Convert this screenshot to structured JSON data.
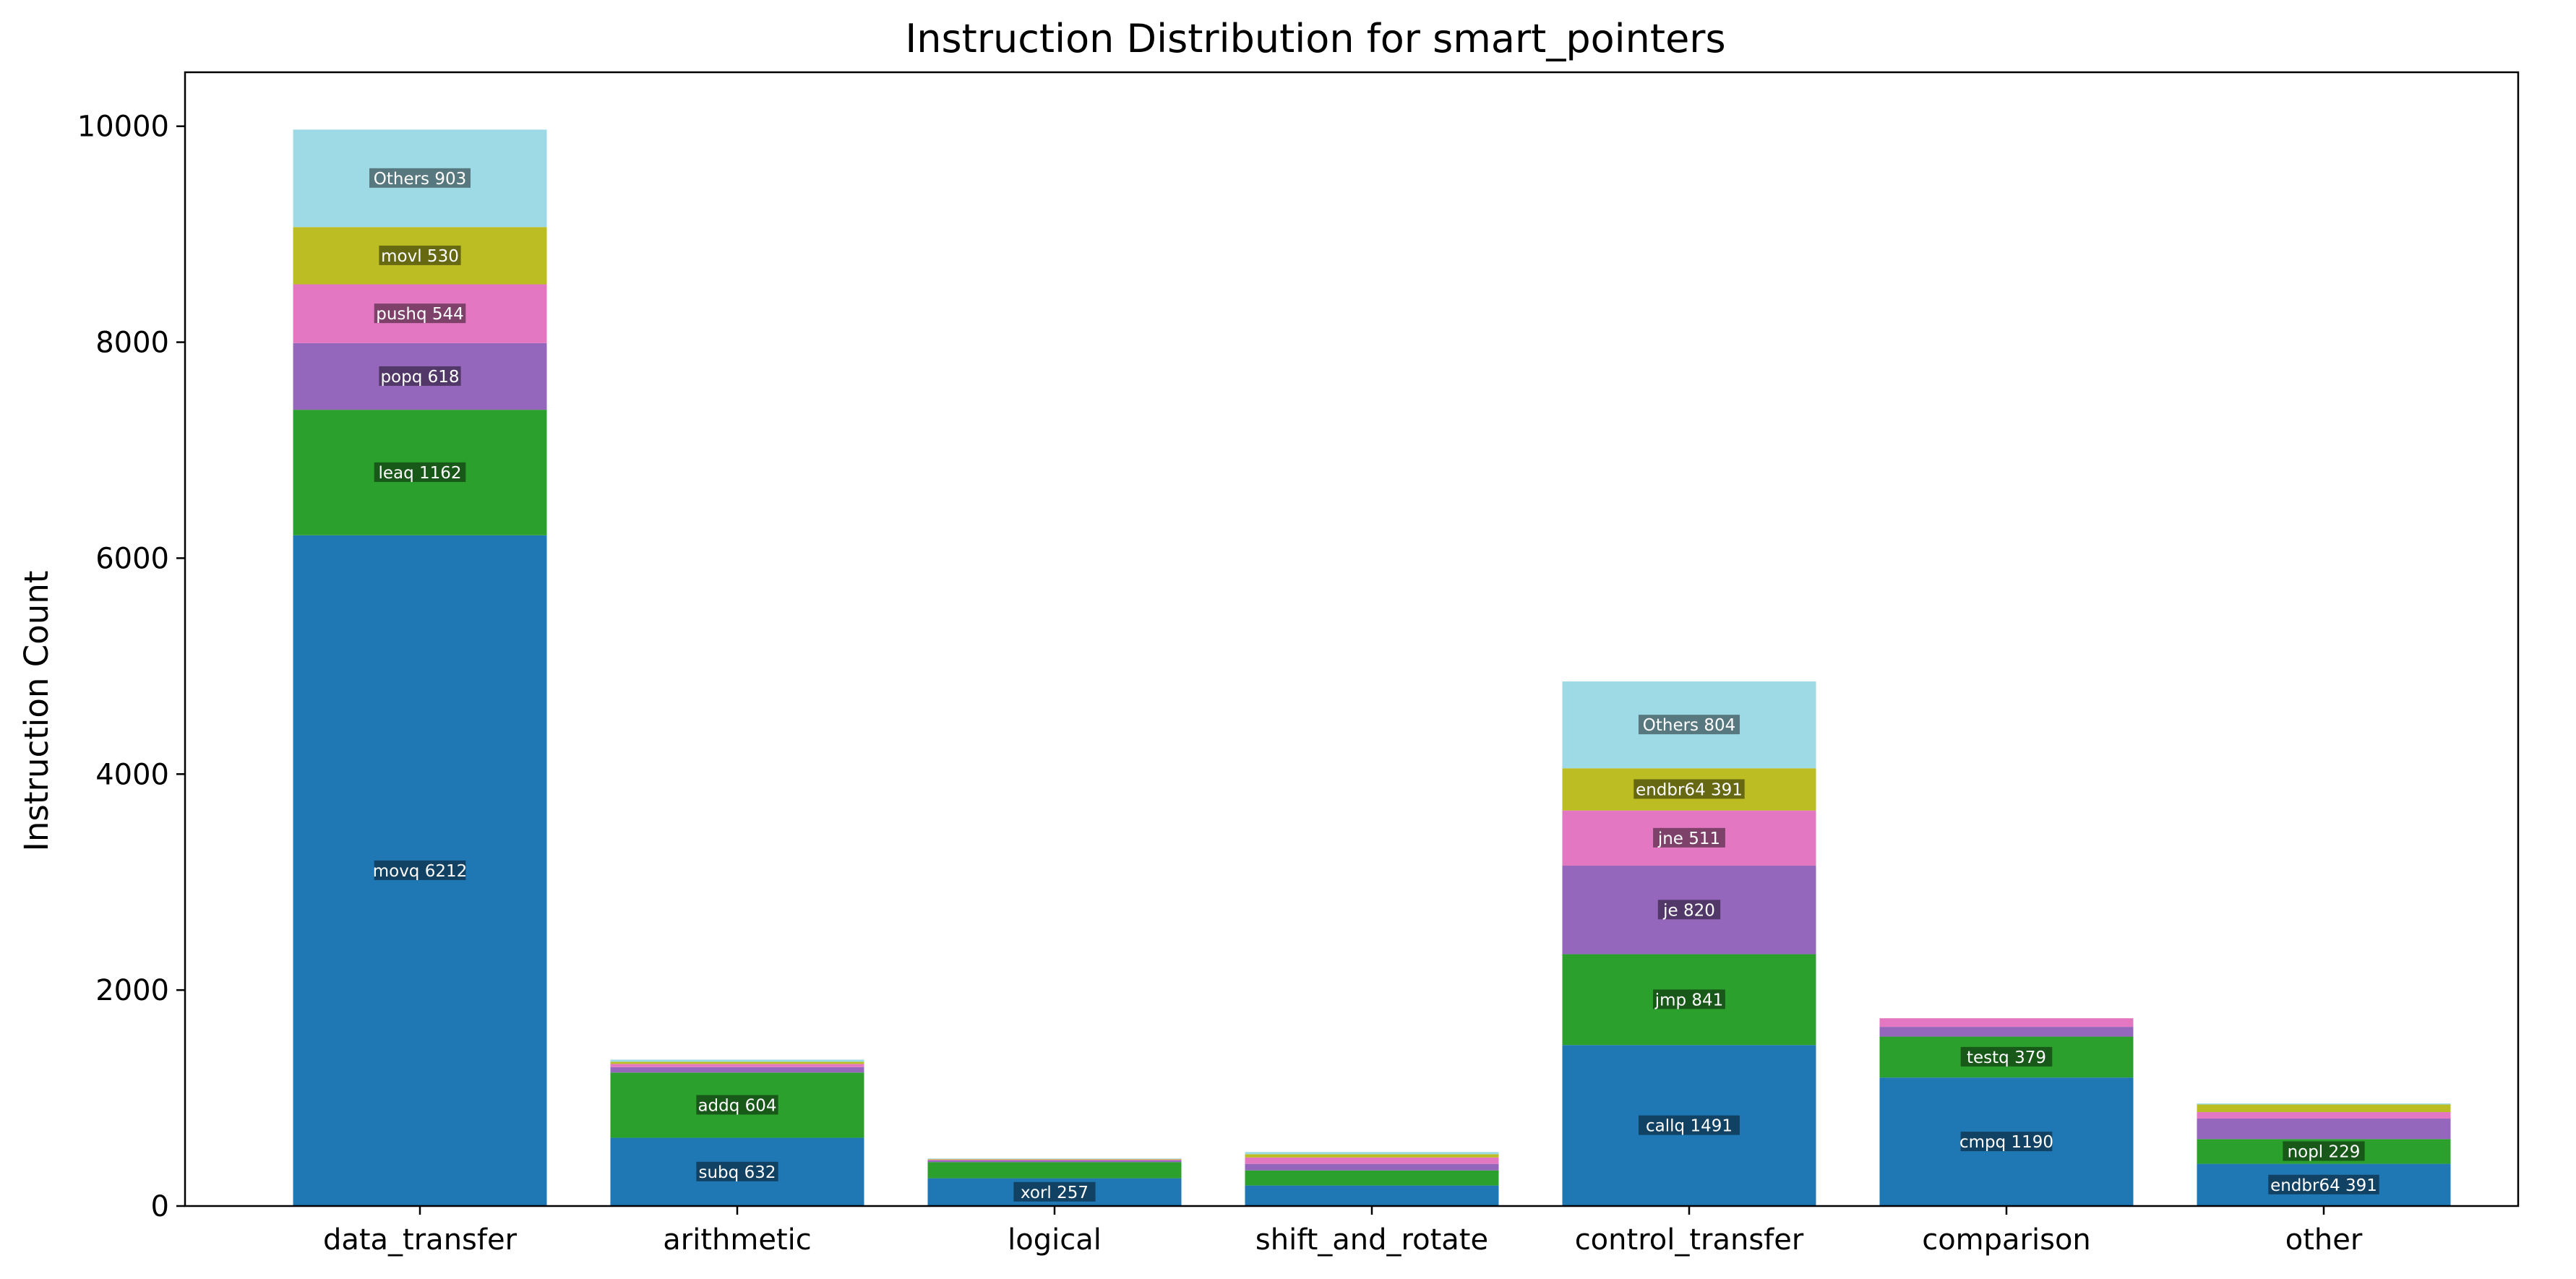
{
  "chart_data": {
    "type": "bar",
    "stacked": true,
    "title": "Instruction Distribution for smart_pointers",
    "xlabel": "",
    "ylabel": "Instruction Count",
    "ylim": [
      0,
      10500
    ],
    "yticks": [
      0,
      2000,
      4000,
      6000,
      8000,
      10000
    ],
    "grid": false,
    "categories": [
      "data_transfer",
      "arithmetic",
      "logical",
      "shift_and_rotate",
      "control_transfer",
      "comparison",
      "other"
    ],
    "series_colors": [
      "#1f77b4",
      "#2ca02c",
      "#9467bd",
      "#e377c2",
      "#bcbd22",
      "#9edae5"
    ],
    "stacks": [
      {
        "category": "data_transfer",
        "segments": [
          {
            "instr": "movq",
            "value": 6212,
            "label": "movq 6212"
          },
          {
            "instr": "leaq",
            "value": 1162,
            "label": "leaq 1162"
          },
          {
            "instr": "popq",
            "value": 618,
            "label": "popq 618"
          },
          {
            "instr": "pushq",
            "value": 544,
            "label": "pushq 544"
          },
          {
            "instr": "movl",
            "value": 530,
            "label": "movl 530"
          },
          {
            "instr": "Others",
            "value": 903,
            "label": "Others 903"
          }
        ]
      },
      {
        "category": "arithmetic",
        "segments": [
          {
            "instr": "subq",
            "value": 632,
            "label": "subq 632"
          },
          {
            "instr": "addq",
            "value": 604,
            "label": "addq 604"
          },
          {
            "value": 50,
            "label": ""
          },
          {
            "value": 30,
            "label": ""
          },
          {
            "value": 20,
            "label": ""
          },
          {
            "value": 20,
            "label": ""
          }
        ]
      },
      {
        "category": "logical",
        "segments": [
          {
            "instr": "xorl",
            "value": 257,
            "label": "xorl 257"
          },
          {
            "value": 150,
            "label": ""
          },
          {
            "value": 15,
            "label": ""
          },
          {
            "value": 8,
            "label": ""
          },
          {
            "value": 5,
            "label": ""
          },
          {
            "value": 5,
            "label": ""
          }
        ]
      },
      {
        "category": "shift_and_rotate",
        "segments": [
          {
            "value": 190,
            "label": ""
          },
          {
            "value": 140,
            "label": ""
          },
          {
            "value": 60,
            "label": ""
          },
          {
            "value": 60,
            "label": ""
          },
          {
            "value": 30,
            "label": ""
          },
          {
            "value": 20,
            "label": ""
          }
        ]
      },
      {
        "category": "control_transfer",
        "segments": [
          {
            "instr": "callq",
            "value": 1491,
            "label": "callq 1491"
          },
          {
            "instr": "jmp",
            "value": 841,
            "label": "jmp 841"
          },
          {
            "instr": "je",
            "value": 820,
            "label": "je 820"
          },
          {
            "instr": "jne",
            "value": 511,
            "label": "jne 511"
          },
          {
            "instr": "endbr64",
            "value": 391,
            "label": "endbr64 391"
          },
          {
            "instr": "Others",
            "value": 804,
            "label": "Others 804"
          }
        ]
      },
      {
        "category": "comparison",
        "segments": [
          {
            "instr": "cmpq",
            "value": 1190,
            "label": "cmpq 1190"
          },
          {
            "instr": "testq",
            "value": 379,
            "label": "testq 379"
          },
          {
            "value": 90,
            "label": ""
          },
          {
            "value": 80,
            "label": ""
          },
          {
            "value": 0,
            "label": ""
          },
          {
            "value": 0,
            "label": ""
          }
        ]
      },
      {
        "category": "other",
        "segments": [
          {
            "instr": "endbr64",
            "value": 391,
            "label": "endbr64 391"
          },
          {
            "instr": "nopl",
            "value": 229,
            "label": "nopl 229"
          },
          {
            "value": 190,
            "label": ""
          },
          {
            "value": 60,
            "label": ""
          },
          {
            "value": 70,
            "label": ""
          },
          {
            "value": 10,
            "label": ""
          }
        ]
      }
    ]
  }
}
